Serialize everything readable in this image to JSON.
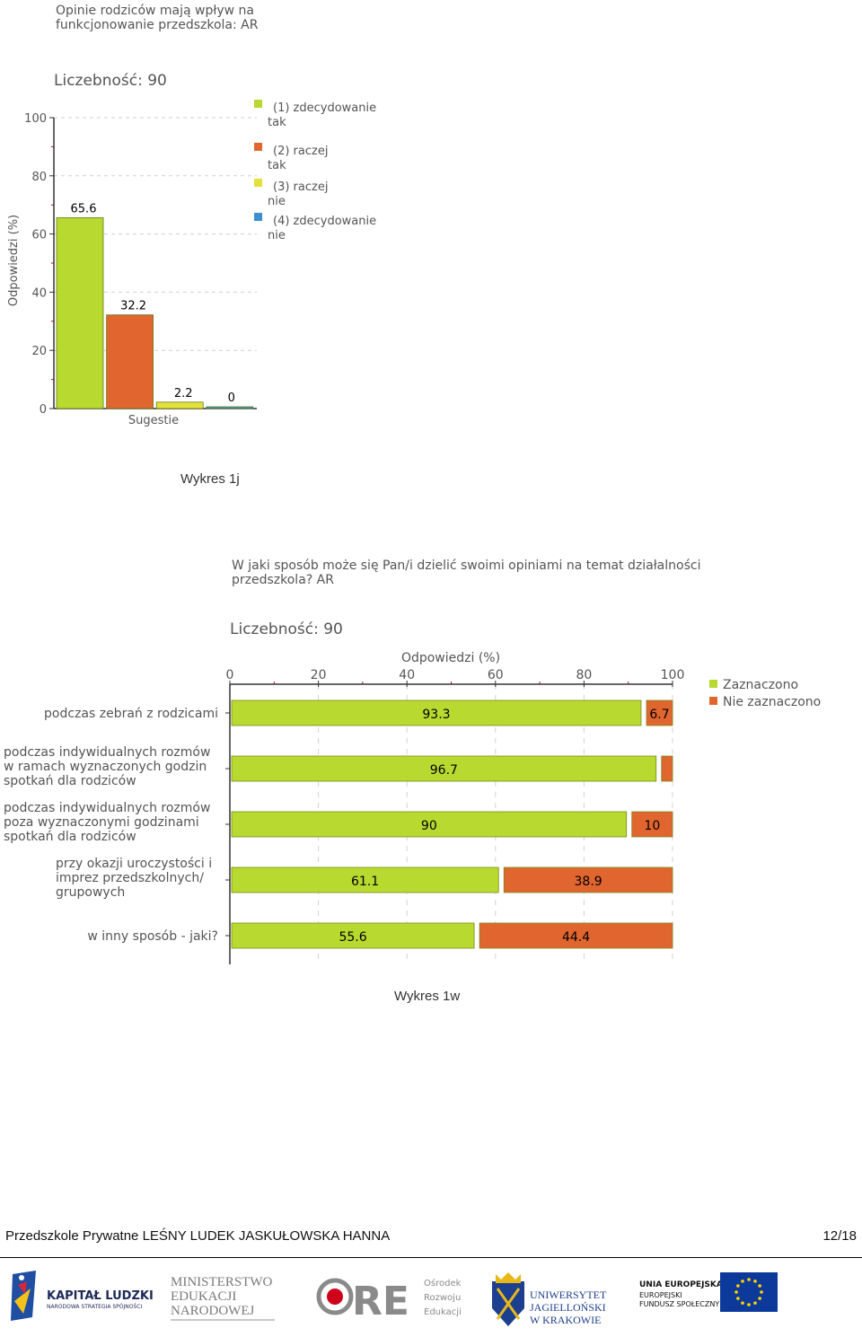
{
  "charts": [
    {
      "caption": "Wykres 1j",
      "chart_data": {
        "type": "bar",
        "title": "Opinie rodziców mają wpływ na funkcjonowanie przedszkola: AR",
        "count_label": "Liczebność: 90",
        "xlabel": "Sugestie",
        "ylabel": "Odpowiedzi (%)",
        "ylim": [
          0,
          100
        ],
        "yticks": [
          "0",
          "20",
          "40",
          "60",
          "80",
          "100"
        ],
        "legend_position": "right",
        "series": [
          {
            "name": "(1) zdecydowanie tak",
            "value": 65.6,
            "label": "65.6",
            "color": "#b8d930"
          },
          {
            "name": "(2) raczej tak",
            "value": 32.2,
            "label": "32.2",
            "color": "#e0652f"
          },
          {
            "name": "(3) raczej nie",
            "value": 2.2,
            "label": "2.2",
            "color": "#e4e23a"
          },
          {
            "name": "(4) zdecydowanie nie",
            "value": 0,
            "label": "0",
            "color": "#3e8fd0"
          }
        ]
      }
    },
    {
      "caption": "Wykres 1w",
      "chart_data": {
        "type": "bar",
        "orientation": "horizontal",
        "stacked": true,
        "title": "W jaki sposób może się Pan/i dzielić swoimi opiniami na temat działalności przedszkola? AR",
        "count_label": "Liczebność: 90",
        "xlabel": "Odpowiedzi (%)",
        "xlim": [
          0,
          100
        ],
        "xticks": [
          "0",
          "20",
          "40",
          "60",
          "80",
          "100"
        ],
        "legend_position": "right",
        "categories": [
          "podczas zebrań z rodzicami",
          "podczas indywidualnych rozmów w ramach wyznaczonych godzin spotkań dla rodziców",
          "podczas indywidualnych rozmów poza wyznaczonymi godzinami spotkań dla rodziców",
          "przy okazji uroczystości i imprez przedszkolnych/ grupowych",
          "w inny sposób - jaki?"
        ],
        "category_lines": [
          [
            "podczas zebrań z rodzicami"
          ],
          [
            "podczas indywidualnych rozmów",
            "w ramach wyznaczonych godzin",
            "spotkań dla rodziców"
          ],
          [
            "podczas indywidualnych rozmów",
            "poza wyznaczonymi godzinami",
            "spotkań dla rodziców"
          ],
          [
            "przy okazji uroczystości i",
            "imprez przedszkolnych/",
            "grupowych"
          ],
          [
            "w inny sposób - jaki?"
          ]
        ],
        "series": [
          {
            "name": "Zaznaczono",
            "color": "#b8d930",
            "values": [
              93.3,
              96.7,
              90,
              61.1,
              55.6
            ],
            "labels": [
              "93.3",
              "96.7",
              "90",
              "61.1",
              "55.6"
            ]
          },
          {
            "name": "Nie zaznaczono",
            "color": "#e0652f",
            "values": [
              6.7,
              3.3,
              10,
              38.9,
              44.4
            ],
            "labels": [
              "6.7",
              "",
              "10",
              "38.9",
              "44.4"
            ]
          }
        ]
      }
    }
  ],
  "footer": {
    "left_text": "Przedszkole Prywatne LEŚNY LUDEK JASKUŁOWSKA HANNA",
    "page_number": "12/18"
  },
  "logos": {
    "kapital_ludzki": {
      "title": "KAPITAŁ LUDZKI",
      "subtitle": "NARODOWA STRATEGIA SPÓJNOŚCI"
    },
    "men": {
      "line1": "MINISTERSTWO",
      "line2": "EDUKACJI",
      "line3": "NARODOWEJ"
    },
    "ore": {
      "mark": "ORE",
      "line1": "Ośrodek",
      "line2": "Rozwoju",
      "line3": "Edukacji"
    },
    "uj": {
      "line1": "UNIWERSYTET",
      "line2": "JAGIELLOŃSKI",
      "line3": "W KRAKOWIE"
    },
    "ue": {
      "line1": "UNIA EUROPEJSKA",
      "line2": "EUROPEJSKI",
      "line3": "FUNDUSZ SPOŁECZNY"
    }
  }
}
